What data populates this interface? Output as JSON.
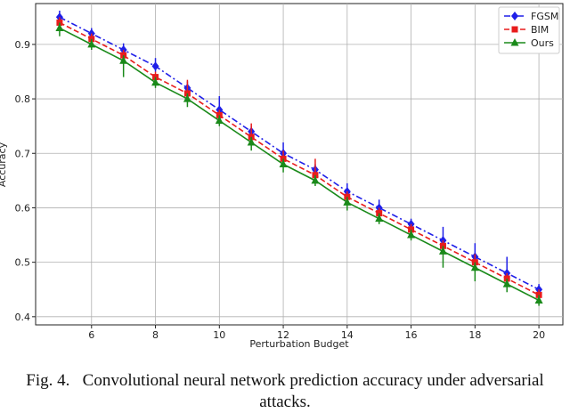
{
  "chart_data": {
    "type": "line",
    "title": "",
    "xlabel": "Perturbation Budget",
    "ylabel": "Accuracy",
    "x": [
      5,
      6,
      7,
      8,
      9,
      10,
      11,
      12,
      13,
      14,
      15,
      16,
      17,
      18,
      19,
      20
    ],
    "xlim": [
      4.25,
      20.75
    ],
    "ylim": [
      0.385,
      0.975
    ],
    "xticks": [
      6,
      8,
      10,
      12,
      14,
      16,
      18,
      20
    ],
    "yticks": [
      0.4,
      0.5,
      0.6,
      0.7,
      0.8,
      0.9
    ],
    "grid": true,
    "legend_position": "top-right",
    "series": [
      {
        "name": "FGSM",
        "color": "#1f1fe8",
        "linestyle": "dashdot",
        "marker": "diamond",
        "values": [
          0.95,
          0.92,
          0.89,
          0.86,
          0.82,
          0.78,
          0.74,
          0.7,
          0.67,
          0.63,
          0.6,
          0.57,
          0.54,
          0.51,
          0.48,
          0.45
        ],
        "err_low": [
          0.01,
          0.01,
          0.01,
          0.01,
          0.01,
          0.01,
          0.01,
          0.01,
          0.01,
          0.01,
          0.01,
          0.01,
          0.01,
          0.01,
          0.01,
          0.01
        ],
        "err_high": [
          0.012,
          0.01,
          0.012,
          0.015,
          0.012,
          0.025,
          0.01,
          0.02,
          0.01,
          0.015,
          0.015,
          0.01,
          0.025,
          0.025,
          0.03,
          0.01
        ]
      },
      {
        "name": "BIM",
        "color": "#e81c1c",
        "linestyle": "dashed",
        "marker": "square",
        "values": [
          0.94,
          0.91,
          0.88,
          0.84,
          0.81,
          0.77,
          0.73,
          0.69,
          0.66,
          0.62,
          0.59,
          0.56,
          0.53,
          0.5,
          0.47,
          0.44
        ],
        "err_low": [
          0.01,
          0.01,
          0.015,
          0.01,
          0.01,
          0.01,
          0.01,
          0.01,
          0.01,
          0.01,
          0.01,
          0.01,
          0.01,
          0.01,
          0.015,
          0.01
        ],
        "err_high": [
          0.01,
          0.01,
          0.01,
          0.01,
          0.025,
          0.01,
          0.025,
          0.015,
          0.03,
          0.01,
          0.01,
          0.01,
          0.01,
          0.015,
          0.01,
          0.01
        ]
      },
      {
        "name": "Ours",
        "color": "#1a8a1a",
        "linestyle": "solid",
        "marker": "triangle",
        "values": [
          0.93,
          0.9,
          0.87,
          0.83,
          0.8,
          0.76,
          0.72,
          0.68,
          0.65,
          0.61,
          0.58,
          0.55,
          0.52,
          0.49,
          0.46,
          0.43
        ],
        "err_low": [
          0.015,
          0.01,
          0.03,
          0.01,
          0.015,
          0.01,
          0.015,
          0.015,
          0.01,
          0.015,
          0.01,
          0.01,
          0.03,
          0.025,
          0.015,
          0.01
        ],
        "err_high": [
          0.01,
          0.01,
          0.01,
          0.01,
          0.01,
          0.01,
          0.01,
          0.01,
          0.01,
          0.01,
          0.01,
          0.01,
          0.01,
          0.01,
          0.01,
          0.01
        ]
      }
    ]
  },
  "caption": {
    "label": "Fig. 4.",
    "text": "Convolutional neural network prediction accuracy under adversarial attacks."
  }
}
